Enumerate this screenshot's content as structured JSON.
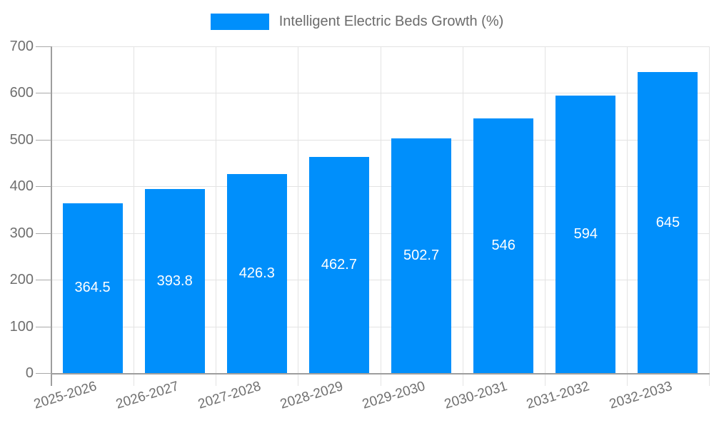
{
  "legend": {
    "label": "Intelligent Electric Beds Growth (%)"
  },
  "colors": {
    "bar": "#008FFB",
    "grid": "#e3e3e3",
    "axis": "#9e9e9e",
    "tick": "#a8a8a8",
    "tick_label": "#6f6f6f",
    "legend_text": "#6b6b6b",
    "value_label": "#ffffff",
    "background": "#ffffff"
  },
  "chart_data": {
    "type": "bar",
    "title": "Intelligent Electric Beds Growth (%)",
    "categories": [
      "2025-2026",
      "2026-2027",
      "2027-2028",
      "2028-2029",
      "2029-2030",
      "2030-2031",
      "2031-2032",
      "2032-2033"
    ],
    "series": [
      {
        "name": "Intelligent Electric Beds Growth (%)",
        "values": [
          364.5,
          393.8,
          426.3,
          462.7,
          502.7,
          546,
          594,
          645
        ]
      }
    ],
    "values": [
      364.5,
      393.8,
      426.3,
      462.7,
      502.7,
      546,
      594,
      645
    ],
    "value_labels": [
      "364.5",
      "393.8",
      "426.3",
      "462.7",
      "502.7",
      "546",
      "594",
      "645"
    ],
    "value_label_position": "inside-center",
    "xlabel": "",
    "ylabel": "",
    "ylim": [
      0,
      700
    ],
    "yticks": [
      0,
      100,
      200,
      300,
      400,
      500,
      600,
      700
    ],
    "grid": true,
    "legend_position": "top",
    "x_label_rotation_deg": -17
  }
}
